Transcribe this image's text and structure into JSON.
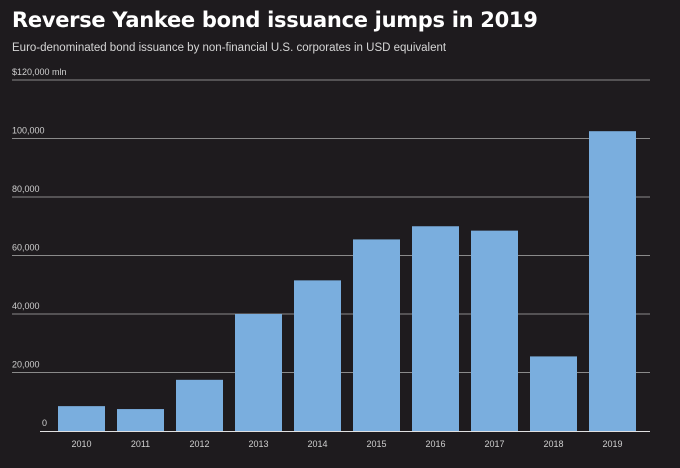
{
  "title": "Reverse Yankee bond issuance jumps in 2019",
  "subtitle": "Euro-denominated bond issuance by non-financial U.S. corporates in USD equivalent",
  "colors": {
    "background": "#1e1b1e",
    "bar": "#7aaede",
    "grid": "#8a8a8a"
  },
  "chart_data": {
    "type": "bar",
    "title": "Reverse Yankee bond issuance jumps in 2019",
    "subtitle": "Euro-denominated bond issuance by non-financial U.S. corporates in USD equivalent",
    "xlabel": "",
    "ylabel": "",
    "unit_label": "$120,000 mln",
    "categories": [
      "2010",
      "2011",
      "2012",
      "2013",
      "2014",
      "2015",
      "2016",
      "2017",
      "2018",
      "2019"
    ],
    "values": [
      8500,
      7500,
      17500,
      40000,
      51500,
      65500,
      70000,
      68500,
      25500,
      102500
    ],
    "ylim": [
      0,
      120000
    ],
    "yticks": [
      0,
      20000,
      40000,
      60000,
      80000,
      100000,
      120000
    ],
    "ytick_labels": [
      "0",
      "20,000",
      "40,000",
      "60,000",
      "80,000",
      "100,000",
      "$120,000 mln"
    ],
    "grid": true,
    "legend": "none"
  }
}
